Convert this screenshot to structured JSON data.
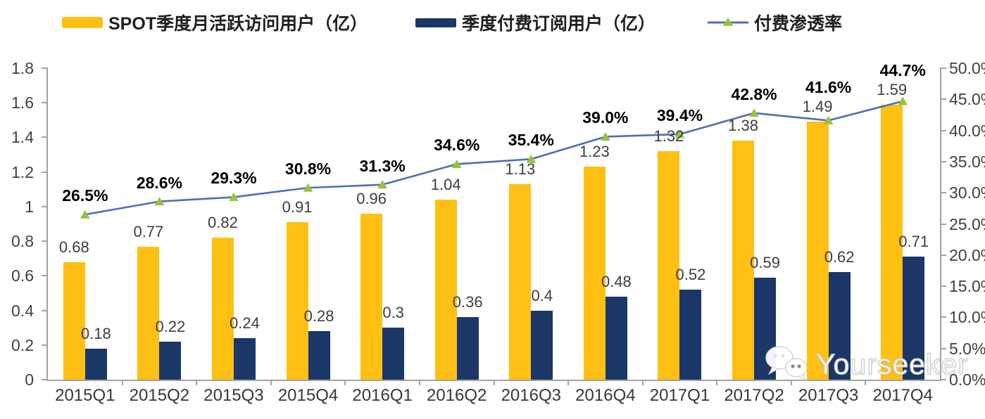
{
  "watermark": {
    "text": "Yourseeker",
    "icon": "wechat-chat-bubbles-icon"
  },
  "colors": {
    "mau_bar": "#FFC013",
    "subs_bar": "#1B3768",
    "line": "#4C6FB8",
    "marker": "#97C23C",
    "axis": "#A3A3A3"
  },
  "chart_data": {
    "type": "combo-bar-line",
    "grid": false,
    "legend_position": "top",
    "categories": [
      "2015Q1",
      "2015Q2",
      "2015Q3",
      "2015Q4",
      "2016Q1",
      "2016Q2",
      "2016Q3",
      "2016Q4",
      "2017Q1",
      "2017Q2",
      "2017Q3",
      "2017Q4"
    ],
    "series": [
      {
        "name": "SPOT季度月活跃访问用户（亿）",
        "type": "bar",
        "axis": "left",
        "color": "#FFC013",
        "values": [
          0.68,
          0.77,
          0.82,
          0.91,
          0.96,
          1.04,
          1.13,
          1.23,
          1.32,
          1.38,
          1.49,
          1.59
        ],
        "labels": [
          "0.68",
          "0.77",
          "0.82",
          "0.91",
          "0.96",
          "1.04",
          "1.13",
          "1.23",
          "1.32",
          "1.38",
          "1.49",
          "1.59"
        ]
      },
      {
        "name": "季度付费订阅用户（亿）",
        "type": "bar",
        "axis": "left",
        "color": "#1B3768",
        "values": [
          0.18,
          0.22,
          0.24,
          0.28,
          0.3,
          0.36,
          0.4,
          0.48,
          0.52,
          0.59,
          0.62,
          0.71
        ],
        "labels": [
          "0.18",
          "0.22",
          "0.24",
          "0.28",
          "0.3",
          "0.36",
          "0.4",
          "0.48",
          "0.52",
          "0.59",
          "0.62",
          "0.71"
        ]
      },
      {
        "name": "付费渗透率",
        "type": "line",
        "axis": "right",
        "color": "#4C6FB8",
        "marker_color": "#97C23C",
        "marker_shape": "triangle",
        "values": [
          26.5,
          28.6,
          29.3,
          30.8,
          31.3,
          34.6,
          35.4,
          39.0,
          39.4,
          42.8,
          41.6,
          44.7
        ],
        "labels": [
          "26.5%",
          "28.6%",
          "29.3%",
          "30.8%",
          "31.3%",
          "34.6%",
          "35.4%",
          "39.0%",
          "39.4%",
          "42.8%",
          "41.6%",
          "44.7%"
        ]
      }
    ],
    "left_axis": {
      "min": 0,
      "max": 1.8,
      "step": 0.2,
      "ticks": [
        "1.8",
        "1.6",
        "1.4",
        "1.2",
        "1",
        "0.8",
        "0.6",
        "0.4",
        "0.2",
        "0"
      ]
    },
    "right_axis": {
      "min": 0,
      "max": 50,
      "step": 5,
      "unit": "%",
      "ticks": [
        "50.0%",
        "45.0%",
        "40.0%",
        "35.0%",
        "30.0%",
        "25.0%",
        "20.0%",
        "15.0%",
        "10.0%",
        "5.0%",
        "0.0%"
      ]
    }
  }
}
